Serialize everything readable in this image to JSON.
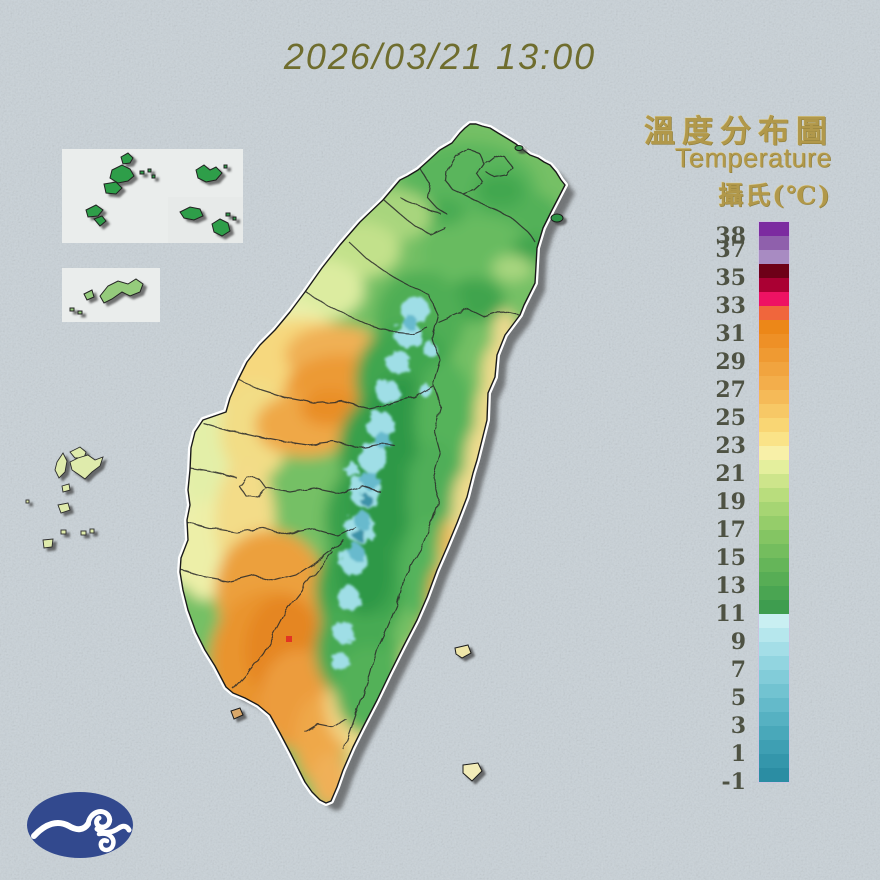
{
  "header": {
    "datetime_title": "2026/03/21 13:00"
  },
  "legend": {
    "title_zh": "溫度分布圖",
    "title_en": "Temperature",
    "unit_label": "攝氏(℃)",
    "scale_max_c": 39,
    "scale_min_c": -1,
    "degrees_per_band": 1,
    "tick_labels": [
      "38",
      "37",
      "35",
      "33",
      "31",
      "29",
      "27",
      "25",
      "23",
      "21",
      "19",
      "17",
      "15",
      "13",
      "11",
      "9",
      "7",
      "5",
      "3",
      "1",
      "-1"
    ],
    "band_colors_top_to_bottom": [
      "#7c2ba0",
      "#8f60ac",
      "#a88bc2",
      "#6e0018",
      "#aa0033",
      "#ee1263",
      "#f0663c",
      "#ec8718",
      "#ee9026",
      "#ef9a32",
      "#f1a43f",
      "#f3ae4b",
      "#f5ba58",
      "#f7c866",
      "#f9d674",
      "#fae388",
      "#f8f0a8",
      "#e4ef9d",
      "#cde58b",
      "#b9dd7d",
      "#a6d573",
      "#95cd6a",
      "#84c563",
      "#74bd5e",
      "#65b559",
      "#57ad55",
      "#4aa552",
      "#3e9d4f",
      "#c9eff2",
      "#b6e7ed",
      "#a4dee7",
      "#92d5e0",
      "#82ccd9",
      "#72c3d1",
      "#64baca",
      "#56b1c2",
      "#49a8ba",
      "#3e9fb3",
      "#3496ab",
      "#2b8da3"
    ]
  },
  "map": {
    "kind": "surface-temperature-distribution-map",
    "main_island": "taiwan",
    "hot_zone_color": "#e9942f",
    "cold_ridge_color": "#9fdee6",
    "lowland_green": "#74c065",
    "coast_highlight": "#ffffff"
  },
  "colors": {
    "background": "#c9d2d8",
    "title_text": "#6f6d2e",
    "legend_gold_text": "#b1984a",
    "tick_label_text": "#4e5243",
    "logo_navy": "#32498e",
    "island_outline": "#1a1a1a",
    "county_line": "#2b2b2b",
    "drop_shadow": "#3a3a3a",
    "inset_panel": "#eaedec"
  },
  "logo": {
    "description": "weather-bureau-cloud-swirl-logo"
  }
}
